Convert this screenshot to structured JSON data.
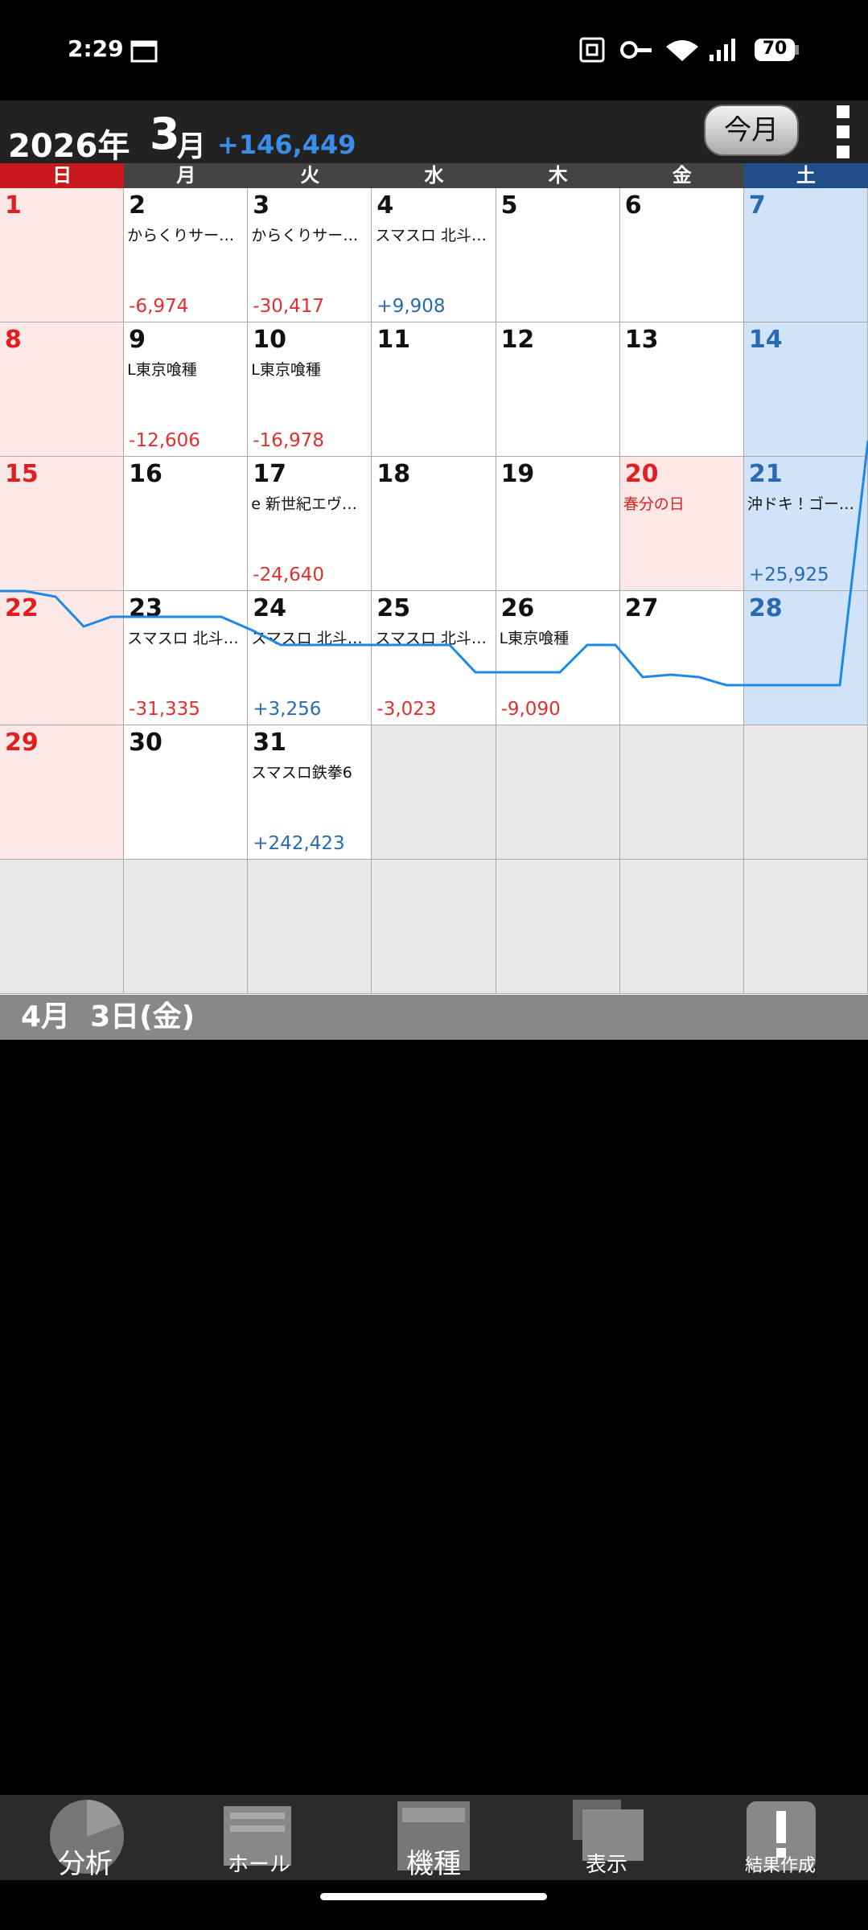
{
  "status_bar": {
    "time": "2:29",
    "battery": "70"
  },
  "header": {
    "year": "2026年",
    "month_number": "3",
    "month_unit": "月",
    "total": "+146,449",
    "today_button": "今月"
  },
  "weekdays": [
    "日",
    "月",
    "火",
    "水",
    "木",
    "金",
    "土"
  ],
  "weeks": [
    [
      {
        "day": "1"
      },
      {
        "day": "2",
        "note": "からくりサー…",
        "amount": "-6,974"
      },
      {
        "day": "3",
        "note": "からくりサー…",
        "amount": "-30,417"
      },
      {
        "day": "4",
        "note": "スマスロ 北斗…",
        "amount": "+9,908"
      },
      {
        "day": "5"
      },
      {
        "day": "6"
      },
      {
        "day": "7"
      }
    ],
    [
      {
        "day": "8"
      },
      {
        "day": "9",
        "note": "L東京喰種",
        "amount": "-12,606"
      },
      {
        "day": "10",
        "note": "L東京喰種",
        "amount": "-16,978"
      },
      {
        "day": "11"
      },
      {
        "day": "12"
      },
      {
        "day": "13"
      },
      {
        "day": "14"
      }
    ],
    [
      {
        "day": "15"
      },
      {
        "day": "16"
      },
      {
        "day": "17",
        "note": "e 新世紀エヴ…",
        "amount": "-24,640"
      },
      {
        "day": "18"
      },
      {
        "day": "19"
      },
      {
        "day": "20",
        "holiday": "春分の日"
      },
      {
        "day": "21",
        "note": "沖ドキ！ゴー…",
        "amount": "+25,925"
      }
    ],
    [
      {
        "day": "22"
      },
      {
        "day": "23",
        "note": "スマスロ 北斗…",
        "amount": "-31,335"
      },
      {
        "day": "24",
        "note": "スマスロ 北斗…",
        "amount": "+3,256"
      },
      {
        "day": "25",
        "note": "スマスロ 北斗…",
        "amount": "-3,023"
      },
      {
        "day": "26",
        "note": "L東京喰種",
        "amount": "-9,090"
      },
      {
        "day": "27"
      },
      {
        "day": "28"
      }
    ],
    [
      {
        "day": "29"
      },
      {
        "day": "30"
      },
      {
        "day": "31",
        "note": "スマスロ鉄拳6",
        "amount": "+242,423"
      },
      null,
      null,
      null,
      null
    ],
    [
      null,
      null,
      null,
      null,
      null,
      null,
      null
    ]
  ],
  "selected_date": "4月  3日(金)",
  "nav": [
    "分析",
    "ホール",
    "機種",
    "表示",
    "結果作成"
  ]
}
